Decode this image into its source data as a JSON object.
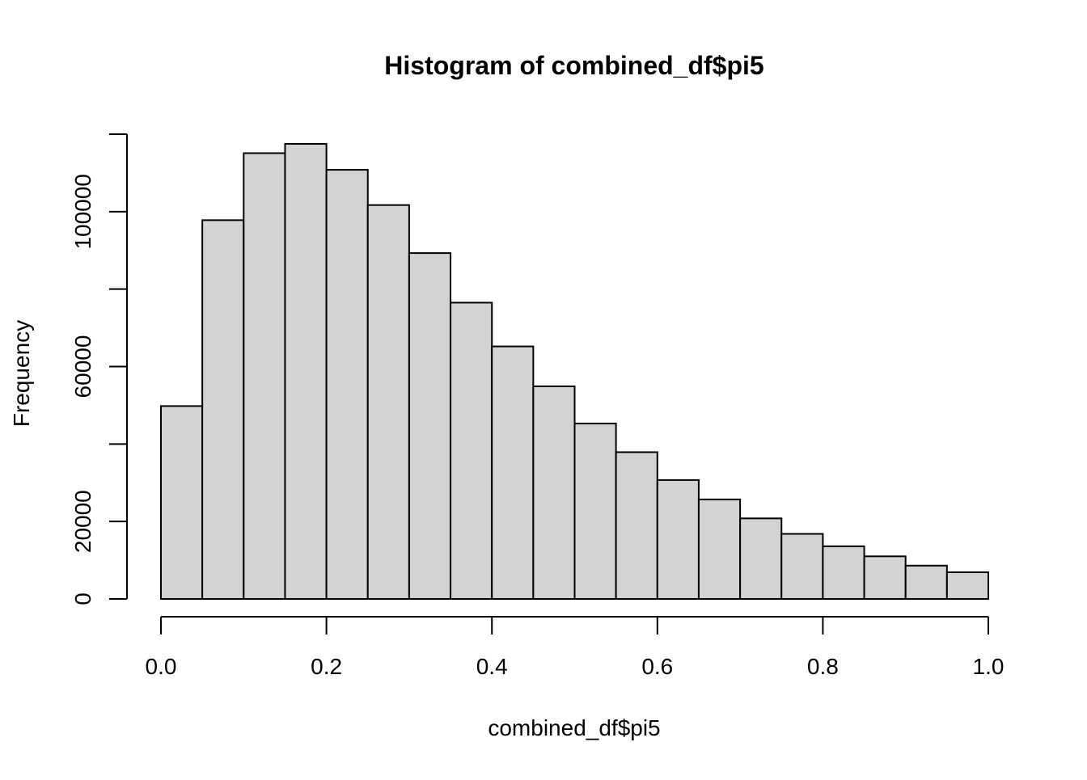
{
  "chart_data": {
    "type": "bar",
    "title": "Histogram of combined_df$pi5",
    "xlabel": "combined_df$pi5",
    "ylabel": "Frequency",
    "bin_edges": [
      0.0,
      0.05,
      0.1,
      0.15,
      0.2,
      0.25,
      0.3,
      0.35,
      0.4,
      0.45,
      0.5,
      0.55,
      0.6,
      0.65,
      0.7,
      0.75,
      0.8,
      0.85,
      0.9,
      0.95,
      1.0
    ],
    "values": [
      49800,
      97800,
      115100,
      117500,
      110800,
      101700,
      89300,
      76500,
      65200,
      54900,
      45300,
      37900,
      30700,
      25700,
      20800,
      16800,
      13600,
      11000,
      8600,
      6900
    ],
    "xlim": [
      0,
      1
    ],
    "ylim": [
      0,
      120000
    ],
    "xticks": [
      0.0,
      0.2,
      0.4,
      0.6,
      0.8,
      1.0
    ],
    "xtick_labels": [
      "0.0",
      "0.2",
      "0.4",
      "0.6",
      "0.8",
      "1.0"
    ],
    "yticks": [
      0,
      20000,
      40000,
      60000,
      80000,
      100000,
      120000
    ],
    "ytick_labels": [
      "0",
      "20000",
      "",
      "60000",
      "",
      "100000",
      ""
    ],
    "bar_fill": "#d3d3d3",
    "bar_stroke": "#000000",
    "grid": false,
    "legend": "none"
  }
}
